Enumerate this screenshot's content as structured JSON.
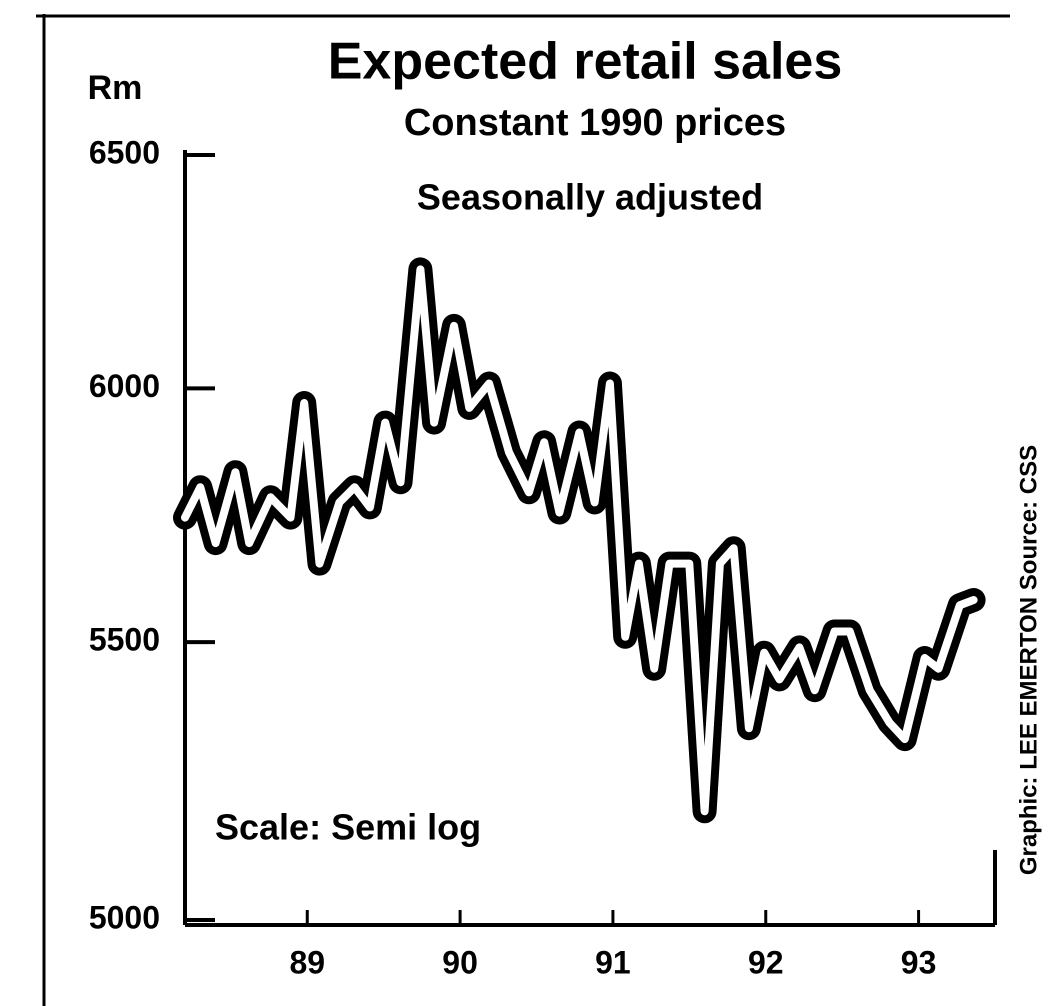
{
  "chart_data": {
    "type": "line",
    "title": "Expected retail sales",
    "subtitle": "Constant 1990 prices",
    "annotations": [
      "Seasonally adjusted",
      "Scale: Semi log"
    ],
    "ylabel": "Rm",
    "source": "Graphic: LEE EMERTON Source: CSS",
    "log_scale": true,
    "color": "#000000",
    "xlim": [
      88.7,
      94.0
    ],
    "xticks": [
      {
        "value": 89.5,
        "label": "89"
      },
      {
        "value": 90.5,
        "label": "90"
      },
      {
        "value": 91.5,
        "label": "91"
      },
      {
        "value": 92.5,
        "label": "92"
      },
      {
        "value": 93.5,
        "label": "93"
      }
    ],
    "ylim": [
      5000,
      6500
    ],
    "yticks": [
      5000,
      5500,
      6000,
      6500
    ],
    "x": [
      88.7,
      88.8,
      88.9,
      89.03,
      89.12,
      89.26,
      89.39,
      89.48,
      89.58,
      89.71,
      89.81,
      89.91,
      90.01,
      90.11,
      90.24,
      90.33,
      90.46,
      90.56,
      90.69,
      90.82,
      90.95,
      91.05,
      91.15,
      91.28,
      91.38,
      91.48,
      91.58,
      91.67,
      91.77,
      91.87,
      92.0,
      92.1,
      92.2,
      92.29,
      92.39,
      92.49,
      92.59,
      92.72,
      92.82,
      92.95,
      93.05,
      93.18,
      93.31,
      93.41,
      93.54,
      93.63,
      93.77,
      93.86
    ],
    "values": [
      5740,
      5800,
      5690,
      5830,
      5690,
      5780,
      5740,
      5970,
      5650,
      5770,
      5800,
      5760,
      5930,
      5810,
      6250,
      5930,
      6130,
      5960,
      6010,
      5870,
      5790,
      5890,
      5750,
      5910,
      5770,
      6010,
      5510,
      5650,
      5450,
      5650,
      5650,
      5190,
      5650,
      5680,
      5340,
      5480,
      5430,
      5490,
      5410,
      5520,
      5520,
      5410,
      5350,
      5320,
      5470,
      5450,
      5570,
      5580
    ]
  }
}
